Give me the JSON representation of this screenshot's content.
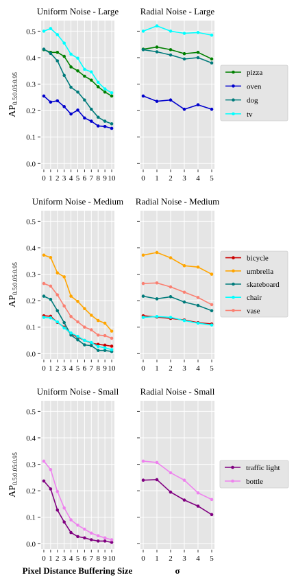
{
  "chart_data": [
    {
      "type": "line",
      "title": "Uniform Noise - Large",
      "ylabel": "AP_{0.5:0.05:0.95}",
      "ylim": [
        -0.02,
        0.54
      ],
      "yticks": [
        "0.0",
        "0.1",
        "0.2",
        "0.3",
        "0.4",
        "0.5"
      ],
      "xlim": [
        -0.4,
        10.4
      ],
      "xticks": [
        "0",
        "1",
        "2",
        "3",
        "4",
        "5",
        "6",
        "7",
        "8",
        "9",
        "10"
      ],
      "x": [
        0,
        1,
        2,
        3,
        4,
        5,
        6,
        7,
        8,
        9,
        10
      ],
      "grid": true,
      "series": [
        {
          "name": "pizza",
          "color": "#008000",
          "values": [
            0.43,
            0.42,
            0.42,
            0.405,
            0.365,
            0.35,
            0.33,
            0.315,
            0.29,
            0.27,
            0.255
          ]
        },
        {
          "name": "oven",
          "color": "#0000cd",
          "values": [
            0.255,
            0.232,
            0.237,
            0.215,
            0.187,
            0.202,
            0.172,
            0.16,
            0.142,
            0.14,
            0.133
          ]
        },
        {
          "name": "dog",
          "color": "#007b7b",
          "values": [
            0.432,
            0.416,
            0.388,
            0.333,
            0.288,
            0.27,
            0.24,
            0.205,
            0.175,
            0.16,
            0.15
          ]
        },
        {
          "name": "tv",
          "color": "#00ffff",
          "values": [
            0.5,
            0.51,
            0.487,
            0.455,
            0.413,
            0.398,
            0.356,
            0.346,
            0.307,
            0.282,
            0.267
          ]
        }
      ]
    },
    {
      "type": "line",
      "title": "Radial Noise - Large",
      "ylim": [
        -0.02,
        0.54
      ],
      "xlim": [
        -0.2,
        5.2
      ],
      "xticks": [
        "0",
        "1",
        "2",
        "3",
        "4",
        "5"
      ],
      "x": [
        0,
        1,
        2,
        3,
        4,
        5
      ],
      "grid": true,
      "series": [
        {
          "name": "pizza",
          "color": "#008000",
          "values": [
            0.432,
            0.44,
            0.43,
            0.415,
            0.42,
            0.395
          ]
        },
        {
          "name": "oven",
          "color": "#0000cd",
          "values": [
            0.255,
            0.235,
            0.24,
            0.205,
            0.222,
            0.205
          ]
        },
        {
          "name": "dog",
          "color": "#007b7b",
          "values": [
            0.43,
            0.422,
            0.41,
            0.395,
            0.4,
            0.38
          ]
        },
        {
          "name": "tv",
          "color": "#00ffff",
          "values": [
            0.5,
            0.52,
            0.5,
            0.492,
            0.495,
            0.485
          ]
        }
      ]
    },
    {
      "type": "line",
      "title": "Uniform Noise - Medium",
      "ylabel": "AP_{0.5:0.05:0.95}",
      "ylim": [
        -0.02,
        0.54
      ],
      "yticks": [
        "0.0",
        "0.1",
        "0.2",
        "0.3",
        "0.4",
        "0.5"
      ],
      "xlim": [
        -0.4,
        10.4
      ],
      "xticks": [
        "0",
        "1",
        "2",
        "3",
        "4",
        "5",
        "6",
        "7",
        "8",
        "9",
        "10"
      ],
      "x": [
        0,
        1,
        2,
        3,
        4,
        5,
        6,
        7,
        8,
        9,
        10
      ],
      "grid": true,
      "series": [
        {
          "name": "bicycle",
          "color": "#cc0000",
          "values": [
            0.143,
            0.141,
            0.118,
            0.1,
            0.075,
            0.062,
            0.05,
            0.04,
            0.035,
            0.032,
            0.028
          ]
        },
        {
          "name": "umbrella",
          "color": "#ffa500",
          "values": [
            0.372,
            0.363,
            0.305,
            0.29,
            0.217,
            0.197,
            0.17,
            0.145,
            0.125,
            0.115,
            0.085
          ]
        },
        {
          "name": "skateboard",
          "color": "#007b7b",
          "values": [
            0.217,
            0.205,
            0.162,
            0.117,
            0.07,
            0.052,
            0.033,
            0.03,
            0.012,
            0.012,
            0.008
          ]
        },
        {
          "name": "chair",
          "color": "#00ffff",
          "values": [
            0.137,
            0.135,
            0.12,
            0.097,
            0.078,
            0.065,
            0.05,
            0.042,
            0.027,
            0.022,
            0.015
          ]
        },
        {
          "name": "vase",
          "color": "#fa8072",
          "values": [
            0.265,
            0.255,
            0.222,
            0.18,
            0.14,
            0.12,
            0.1,
            0.09,
            0.07,
            0.068,
            0.058
          ]
        }
      ]
    },
    {
      "type": "line",
      "title": "Radial Noise - Medium",
      "ylim": [
        -0.02,
        0.54
      ],
      "xlim": [
        -0.2,
        5.2
      ],
      "xticks": [
        "0",
        "1",
        "2",
        "3",
        "4",
        "5"
      ],
      "x": [
        0,
        1,
        2,
        3,
        4,
        5
      ],
      "grid": true,
      "series": [
        {
          "name": "bicycle",
          "color": "#cc0000",
          "values": [
            0.143,
            0.138,
            0.133,
            0.127,
            0.117,
            0.112
          ]
        },
        {
          "name": "umbrella",
          "color": "#ffa500",
          "values": [
            0.372,
            0.382,
            0.362,
            0.332,
            0.327,
            0.3
          ]
        },
        {
          "name": "skateboard",
          "color": "#007b7b",
          "values": [
            0.217,
            0.207,
            0.215,
            0.195,
            0.182,
            0.162
          ]
        },
        {
          "name": "chair",
          "color": "#00ffff",
          "values": [
            0.137,
            0.14,
            0.137,
            0.125,
            0.115,
            0.108
          ]
        },
        {
          "name": "vase",
          "color": "#fa8072",
          "values": [
            0.265,
            0.267,
            0.252,
            0.232,
            0.212,
            0.185
          ]
        }
      ]
    },
    {
      "type": "line",
      "title": "Uniform Noise - Small",
      "ylabel": "AP_{0.5:0.05:0.95}",
      "xlabel": "Pixel Distance Buffering Size",
      "ylim": [
        -0.02,
        0.54
      ],
      "yticks": [
        "0.0",
        "0.1",
        "0.2",
        "0.3",
        "0.4",
        "0.5"
      ],
      "xlim": [
        -0.4,
        10.4
      ],
      "xticks": [
        "0",
        "1",
        "2",
        "3",
        "4",
        "5",
        "6",
        "7",
        "8",
        "9",
        "10"
      ],
      "x": [
        0,
        1,
        2,
        3,
        4,
        5,
        6,
        7,
        8,
        9,
        10
      ],
      "grid": true,
      "series": [
        {
          "name": "traffic light",
          "color": "#800080",
          "values": [
            0.237,
            0.207,
            0.127,
            0.082,
            0.042,
            0.027,
            0.022,
            0.015,
            0.01,
            0.01,
            0.005
          ]
        },
        {
          "name": "bottle",
          "color": "#ee82ee",
          "values": [
            0.312,
            0.28,
            0.197,
            0.135,
            0.09,
            0.07,
            0.055,
            0.04,
            0.03,
            0.022,
            0.015
          ]
        }
      ]
    },
    {
      "type": "line",
      "title": "Radial Noise - Small",
      "xlabel": "σ",
      "ylim": [
        -0.02,
        0.54
      ],
      "xlim": [
        -0.2,
        5.2
      ],
      "xticks": [
        "0",
        "1",
        "2",
        "3",
        "4",
        "5"
      ],
      "x": [
        0,
        1,
        2,
        3,
        4,
        5
      ],
      "grid": true,
      "series": [
        {
          "name": "traffic light",
          "color": "#800080",
          "values": [
            0.24,
            0.242,
            0.195,
            0.165,
            0.142,
            0.11
          ]
        },
        {
          "name": "bottle",
          "color": "#ee82ee",
          "values": [
            0.312,
            0.307,
            0.268,
            0.24,
            0.192,
            0.167
          ]
        }
      ]
    }
  ]
}
